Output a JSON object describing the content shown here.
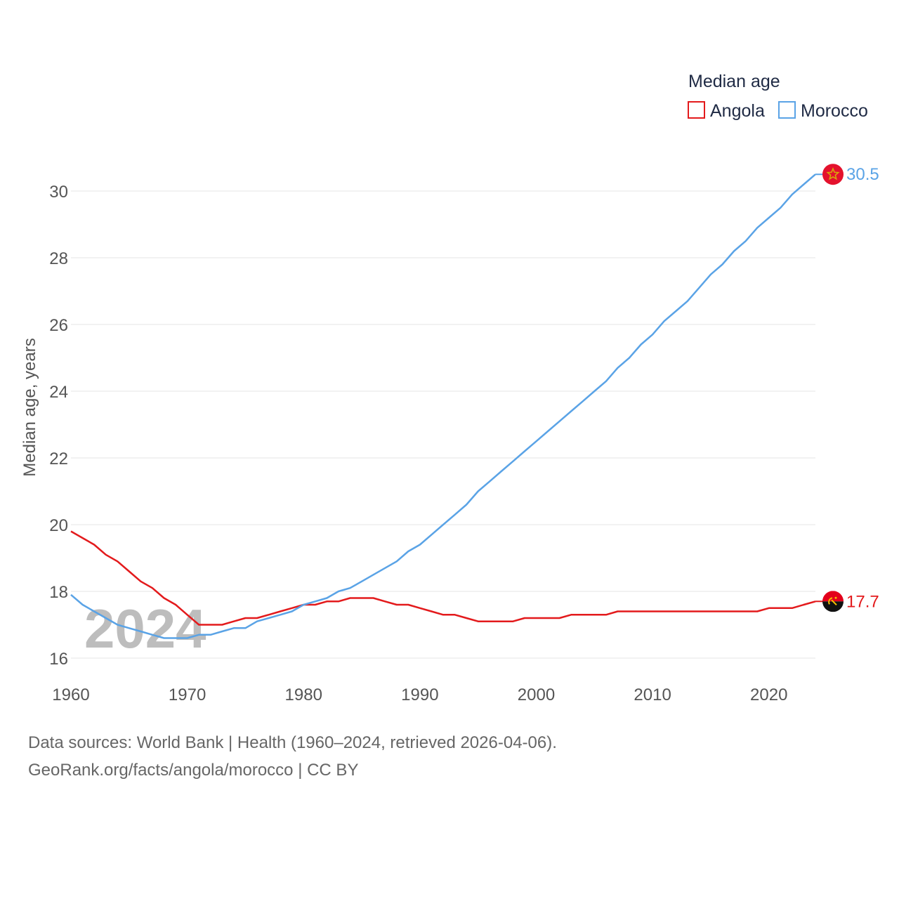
{
  "chart_data": {
    "type": "line",
    "legend_title": "Median age",
    "ylabel": "Median age, years",
    "ylim": [
      16,
      30.5
    ],
    "xlim": [
      1960,
      2024
    ],
    "yticks": [
      16,
      18,
      20,
      22,
      24,
      26,
      28,
      30
    ],
    "xticks": [
      1960,
      1970,
      1980,
      1990,
      2000,
      2010,
      2020
    ],
    "watermark_year": "2024",
    "grid": true,
    "legend_position": "top-right",
    "series": [
      {
        "name": "Angola",
        "color": "#e31a1c",
        "end_label": "17.7",
        "flag": "angola-flag",
        "x": [
          1960,
          1961,
          1962,
          1963,
          1964,
          1965,
          1966,
          1967,
          1968,
          1969,
          1970,
          1971,
          1972,
          1973,
          1974,
          1975,
          1976,
          1977,
          1978,
          1979,
          1980,
          1981,
          1982,
          1983,
          1984,
          1985,
          1986,
          1987,
          1988,
          1989,
          1990,
          1991,
          1992,
          1993,
          1994,
          1995,
          1996,
          1997,
          1998,
          1999,
          2000,
          2001,
          2002,
          2003,
          2004,
          2005,
          2006,
          2007,
          2008,
          2009,
          2010,
          2011,
          2012,
          2013,
          2014,
          2015,
          2016,
          2017,
          2018,
          2019,
          2020,
          2021,
          2022,
          2023,
          2024
        ],
        "values": [
          19.8,
          19.6,
          19.4,
          19.1,
          18.9,
          18.6,
          18.3,
          18.1,
          17.8,
          17.6,
          17.3,
          17.0,
          17.0,
          17.0,
          17.1,
          17.2,
          17.2,
          17.3,
          17.4,
          17.5,
          17.6,
          17.6,
          17.7,
          17.7,
          17.8,
          17.8,
          17.8,
          17.7,
          17.6,
          17.6,
          17.5,
          17.4,
          17.3,
          17.3,
          17.2,
          17.1,
          17.1,
          17.1,
          17.1,
          17.2,
          17.2,
          17.2,
          17.2,
          17.3,
          17.3,
          17.3,
          17.3,
          17.4,
          17.4,
          17.4,
          17.4,
          17.4,
          17.4,
          17.4,
          17.4,
          17.4,
          17.4,
          17.4,
          17.4,
          17.4,
          17.5,
          17.5,
          17.5,
          17.6,
          17.7
        ]
      },
      {
        "name": "Morocco",
        "color": "#5aa3e6",
        "end_label": "30.5",
        "flag": "morocco-flag",
        "x": [
          1960,
          1961,
          1962,
          1963,
          1964,
          1965,
          1966,
          1967,
          1968,
          1969,
          1970,
          1971,
          1972,
          1973,
          1974,
          1975,
          1976,
          1977,
          1978,
          1979,
          1980,
          1981,
          1982,
          1983,
          1984,
          1985,
          1986,
          1987,
          1988,
          1989,
          1990,
          1991,
          1992,
          1993,
          1994,
          1995,
          1996,
          1997,
          1998,
          1999,
          2000,
          2001,
          2002,
          2003,
          2004,
          2005,
          2006,
          2007,
          2008,
          2009,
          2010,
          2011,
          2012,
          2013,
          2014,
          2015,
          2016,
          2017,
          2018,
          2019,
          2020,
          2021,
          2022,
          2023,
          2024
        ],
        "values": [
          17.9,
          17.6,
          17.4,
          17.2,
          17.0,
          16.9,
          16.8,
          16.7,
          16.6,
          16.6,
          16.6,
          16.7,
          16.7,
          16.8,
          16.9,
          16.9,
          17.1,
          17.2,
          17.3,
          17.4,
          17.6,
          17.7,
          17.8,
          18.0,
          18.1,
          18.3,
          18.5,
          18.7,
          18.9,
          19.2,
          19.4,
          19.7,
          20.0,
          20.3,
          20.6,
          21.0,
          21.3,
          21.6,
          21.9,
          22.2,
          22.5,
          22.8,
          23.1,
          23.4,
          23.7,
          24.0,
          24.3,
          24.7,
          25.0,
          25.4,
          25.7,
          26.1,
          26.4,
          26.7,
          27.1,
          27.5,
          27.8,
          28.2,
          28.5,
          28.9,
          29.2,
          29.5,
          29.9,
          30.2,
          30.5
        ]
      }
    ]
  },
  "footer": {
    "source_line": "Data sources: World Bank | Health (1960–2024, retrieved 2026-04-06).",
    "credit_line": "GeoRank.org/facts/angola/morocco | CC BY"
  }
}
